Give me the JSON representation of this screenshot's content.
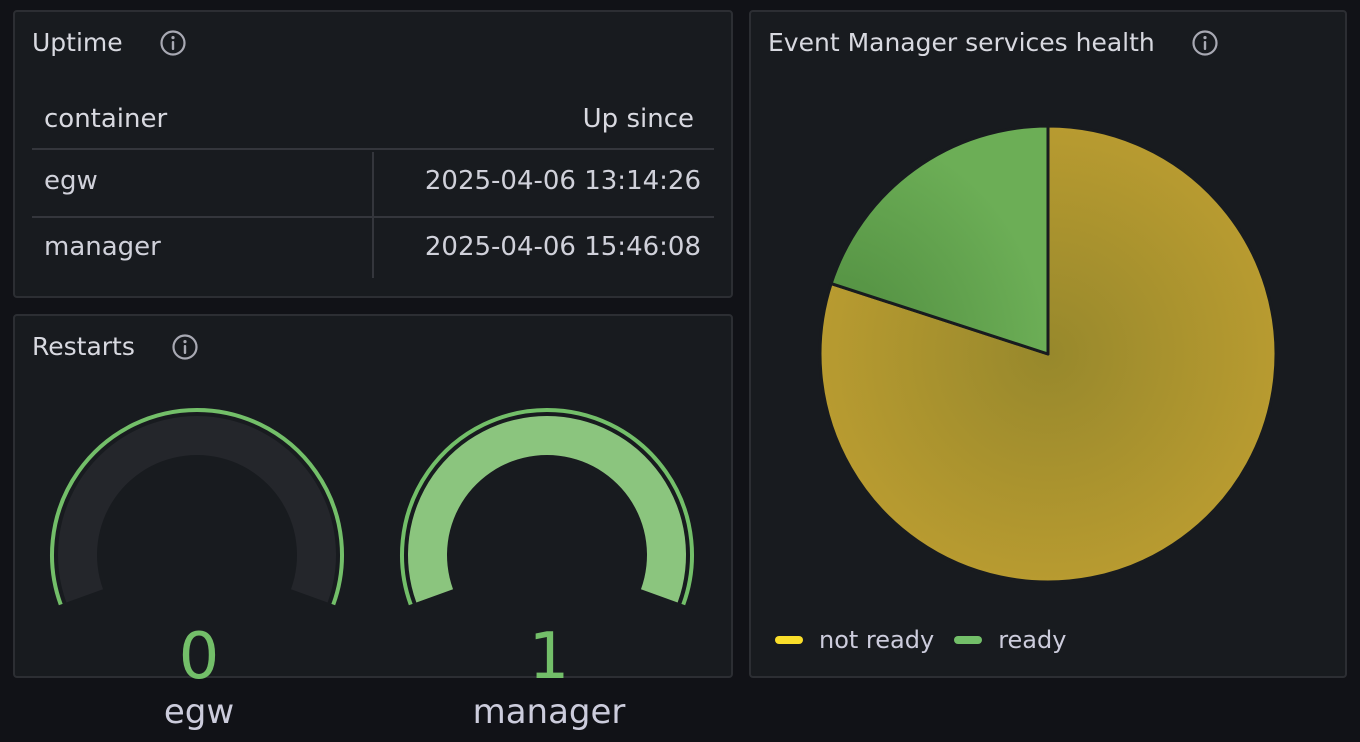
{
  "uptime": {
    "title": "Uptime",
    "columns": [
      "container",
      "Up since"
    ],
    "rows": [
      {
        "container": "egw",
        "up_since": "2025-04-06 13:14:26"
      },
      {
        "container": "manager",
        "up_since": "2025-04-06 15:46:08"
      }
    ]
  },
  "restarts": {
    "title": "Restarts",
    "gauges": [
      {
        "label": "egw",
        "value": "0",
        "fill_fraction": 0
      },
      {
        "label": "manager",
        "value": "1",
        "fill_fraction": 1
      }
    ],
    "colors": {
      "fill": "#8bc57e",
      "track": "#24262b",
      "threshold": "#73bf69",
      "value_text": "#73bf69"
    }
  },
  "health": {
    "title": "Event Manager services health",
    "legend": [
      {
        "label": "not ready",
        "color": "#fade2a"
      },
      {
        "label": "ready",
        "color": "#73bf69"
      }
    ]
  },
  "chart_data": {
    "type": "pie",
    "title": "Event Manager services health",
    "categories": [
      "not ready",
      "ready"
    ],
    "values": [
      8,
      2
    ],
    "colors": [
      "#ad962f",
      "#5d9a4e"
    ],
    "legend_position": "bottom-left"
  },
  "icons": [
    "info-icon"
  ]
}
